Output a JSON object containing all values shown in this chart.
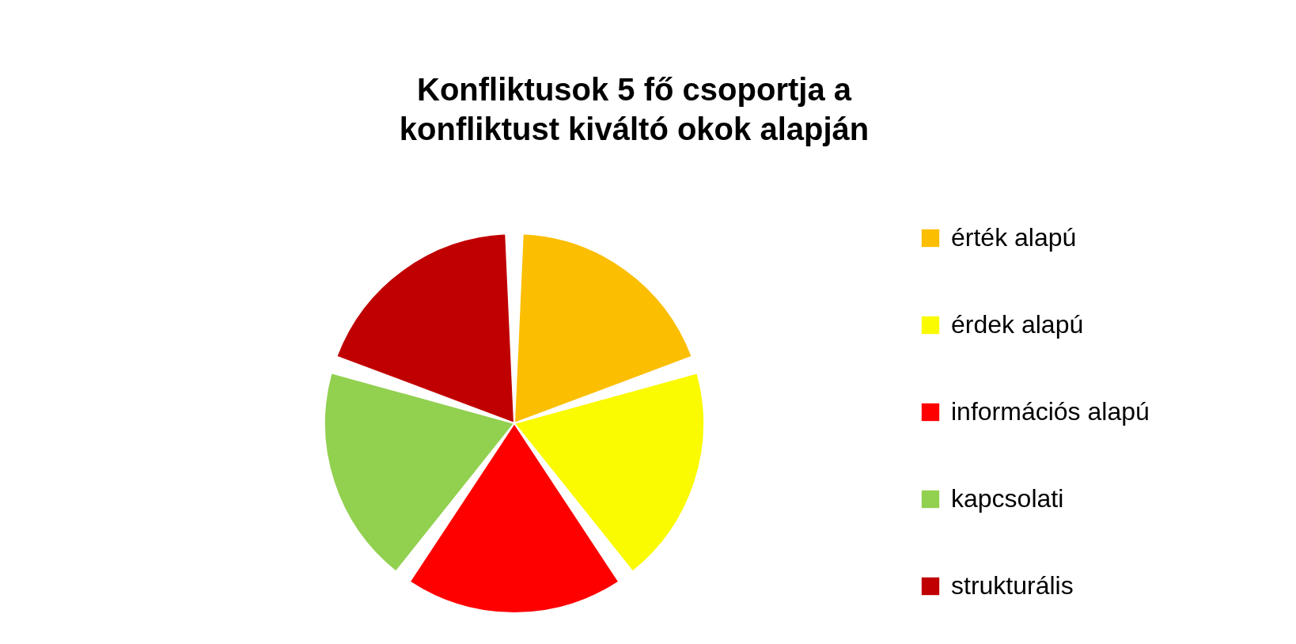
{
  "chart_data": {
    "type": "pie",
    "title": "Konfliktusok 5 fő csoportja a konfliktust kiváltó okok alapján",
    "categories": [
      "érték alapú",
      "érdek alapú",
      "információs alapú",
      "kapcsolati",
      "strukturális"
    ],
    "values": [
      20,
      20,
      20,
      20,
      20
    ],
    "colors": [
      "#fbbe00",
      "#fafa00",
      "#fe0000",
      "#92d050",
      "#c00000"
    ],
    "legend": "right"
  }
}
